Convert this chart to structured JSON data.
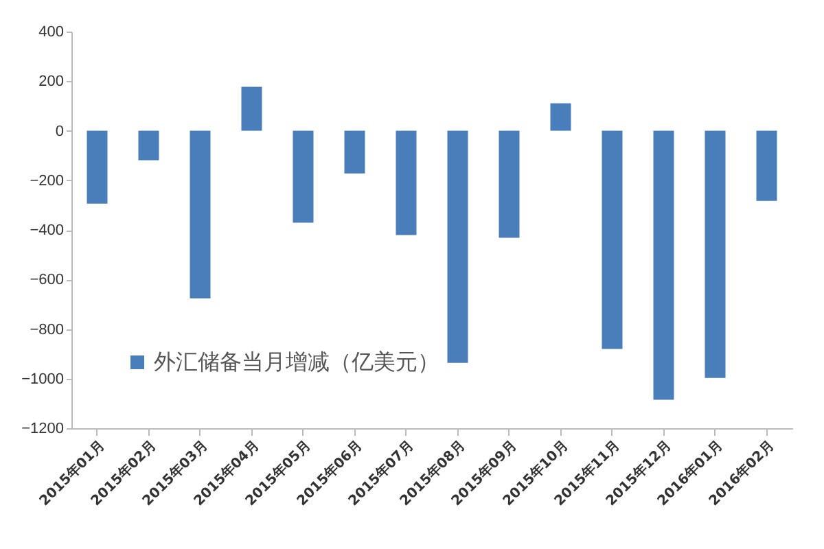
{
  "chart_data": {
    "type": "bar",
    "categories": [
      "2015年01月",
      "2015年02月",
      "2015年03月",
      "2015年04月",
      "2015年05月",
      "2015年06月",
      "2015年07月",
      "2015年08月",
      "2015年09月",
      "2015年10月",
      "2015年11月",
      "2015年12月",
      "2016年01月",
      "2016年02月"
    ],
    "series": [
      {
        "name": "外汇储备当月增减（亿美元）",
        "color": "#4a7ebb",
        "values": [
          -294,
          -119,
          -676,
          177,
          -371,
          -172,
          -421,
          -936,
          -432,
          111,
          -880,
          -1085,
          -997,
          -283
        ]
      }
    ],
    "ylim": [
      -1200,
      400
    ],
    "yticks": [
      -1200,
      -1000,
      -800,
      -600,
      -400,
      -200,
      0,
      200,
      400
    ],
    "grid": false,
    "legend": "bottom left"
  }
}
